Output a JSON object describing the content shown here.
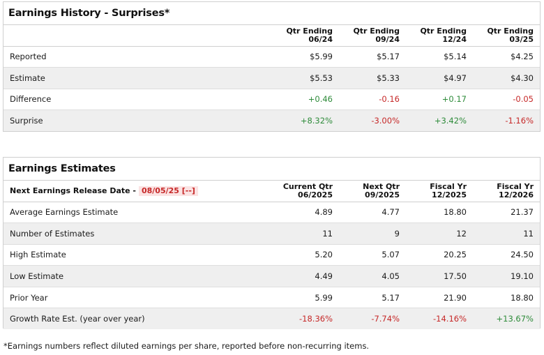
{
  "history": {
    "title": "Earnings History - Surprises*",
    "columns": [
      {
        "line1": "Qtr Ending",
        "line2": "06/24"
      },
      {
        "line1": "Qtr Ending",
        "line2": "09/24"
      },
      {
        "line1": "Qtr Ending",
        "line2": "12/24"
      },
      {
        "line1": "Qtr Ending",
        "line2": "03/25"
      }
    ],
    "rows": [
      {
        "label": "Reported",
        "values": [
          "$5.99",
          "$5.17",
          "$5.14",
          "$4.25"
        ]
      },
      {
        "label": "Estimate",
        "values": [
          "$5.53",
          "$5.33",
          "$4.97",
          "$4.30"
        ]
      },
      {
        "label": "Difference",
        "values": [
          "+0.46",
          "-0.16",
          "+0.17",
          "-0.05"
        ]
      },
      {
        "label": "Surprise",
        "values": [
          "+8.32%",
          "-3.00%",
          "+3.42%",
          "-1.16%"
        ]
      }
    ]
  },
  "estimates": {
    "title": "Earnings Estimates",
    "release_label": "Next Earnings Release Date -",
    "release_date": "08/05/25 [--]",
    "columns": [
      {
        "line1": "Current Qtr",
        "line2": "06/2025"
      },
      {
        "line1": "Next Qtr",
        "line2": "09/2025"
      },
      {
        "line1": "Fiscal Yr",
        "line2": "12/2025"
      },
      {
        "line1": "Fiscal Yr",
        "line2": "12/2026"
      }
    ],
    "rows": [
      {
        "label": "Average Earnings Estimate",
        "values": [
          "4.89",
          "4.77",
          "18.80",
          "21.37"
        ]
      },
      {
        "label": "Number of Estimates",
        "values": [
          "11",
          "9",
          "12",
          "11"
        ]
      },
      {
        "label": "High Estimate",
        "values": [
          "5.20",
          "5.07",
          "20.25",
          "24.50"
        ]
      },
      {
        "label": "Low Estimate",
        "values": [
          "4.49",
          "4.05",
          "17.50",
          "19.10"
        ]
      },
      {
        "label": "Prior Year",
        "values": [
          "5.99",
          "5.17",
          "21.90",
          "18.80"
        ]
      },
      {
        "label": "Growth Rate Est. (year over year)",
        "values": [
          "-18.36%",
          "-7.74%",
          "-14.16%",
          "+13.67%"
        ]
      }
    ]
  },
  "footnote": "*Earnings numbers reflect diluted earnings per share, reported before non-recurring items.",
  "colors": {
    "positive": "#2e8b3a",
    "negative": "#c62828",
    "shade": "#efefef"
  }
}
